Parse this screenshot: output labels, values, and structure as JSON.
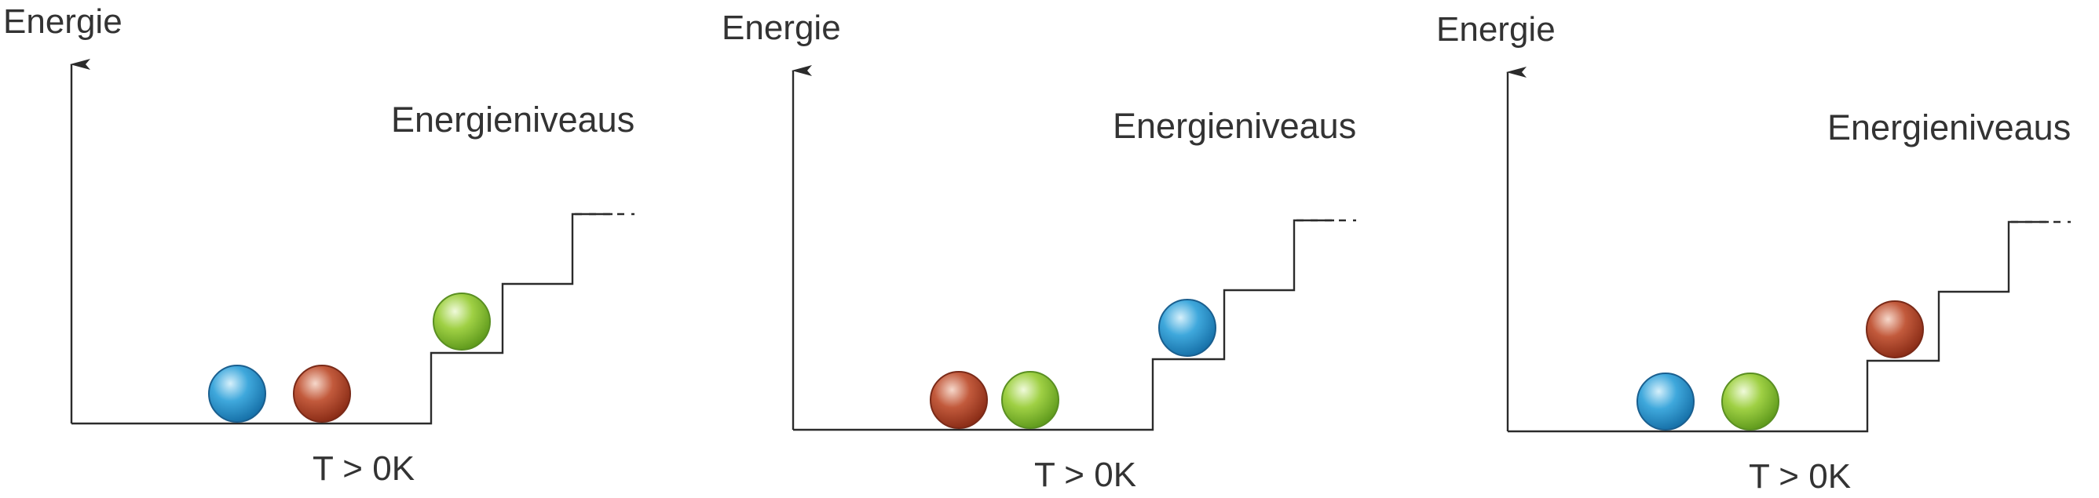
{
  "panels": [
    {
      "axis_label": "Energie",
      "levels_label": "Energieniveaus",
      "temperature_label": "T > 0K",
      "ground_balls": [
        "blue",
        "red"
      ],
      "excited_ball": "green"
    },
    {
      "axis_label": "Energie",
      "levels_label": "Energieniveaus",
      "temperature_label": "T > 0K",
      "ground_balls": [
        "red",
        "green"
      ],
      "excited_ball": "blue"
    },
    {
      "axis_label": "Energie",
      "levels_label": "Energieniveaus",
      "temperature_label": "T > 0K",
      "ground_balls": [
        "blue",
        "green"
      ],
      "excited_ball": "red"
    }
  ],
  "ball_colors": {
    "blue": {
      "light": "#bfe4f7",
      "mid": "#3fa8dc",
      "dark": "#1670a8",
      "edge": "#1a5f8f"
    },
    "red": {
      "light": "#f3c9b8",
      "mid": "#c25a3c",
      "dark": "#8a2c16",
      "edge": "#7a2a18"
    },
    "green": {
      "light": "#e6f5c4",
      "mid": "#9fd044",
      "dark": "#5f9a1c",
      "edge": "#5a8f22"
    }
  }
}
